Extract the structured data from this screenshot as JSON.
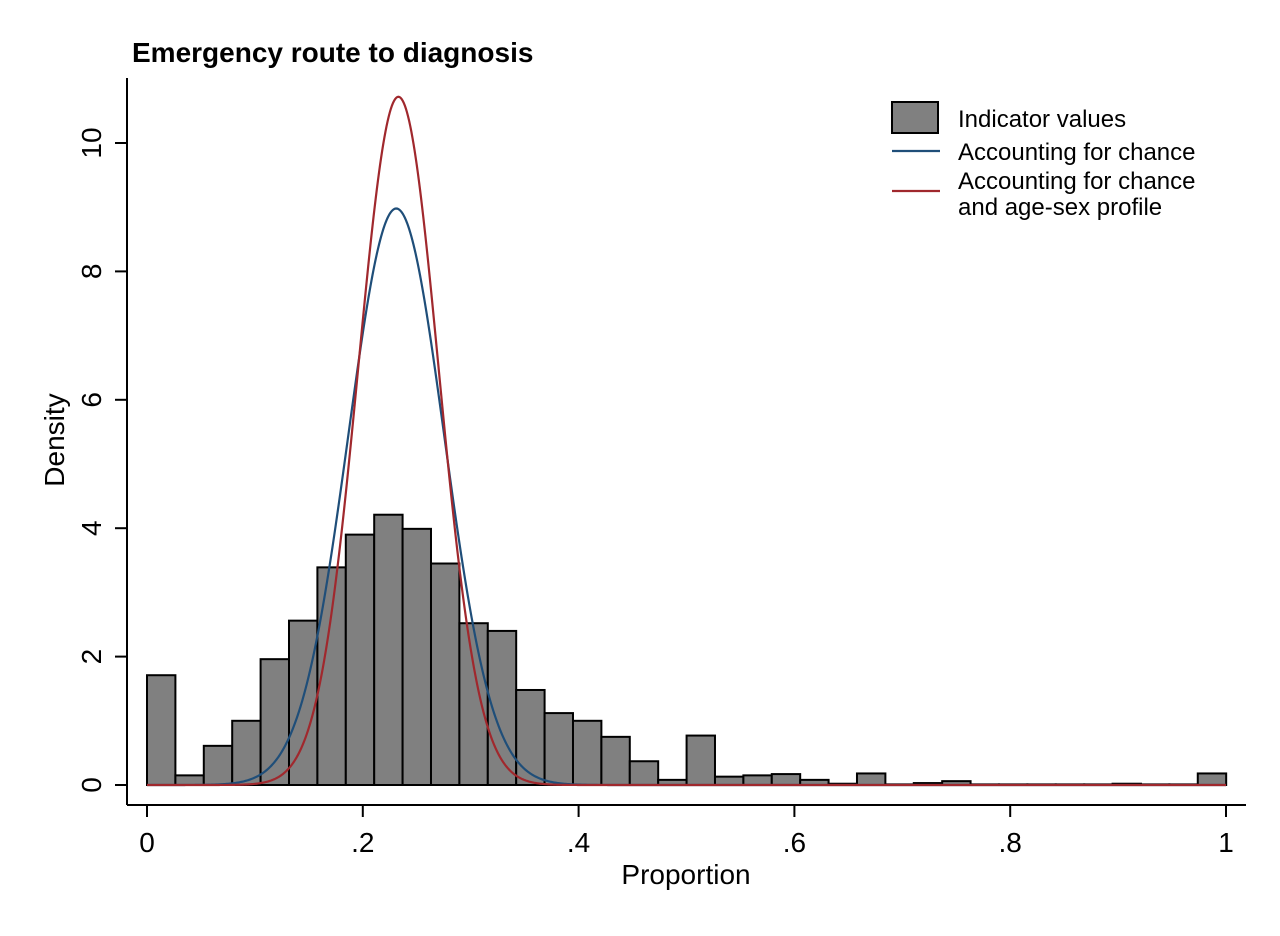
{
  "chart_data": {
    "type": "bar",
    "title": "Emergency route to diagnosis",
    "xlabel": "Proportion",
    "ylabel": "Density",
    "xlim": [
      0,
      1
    ],
    "ylim": [
      0,
      10.7
    ],
    "x_ticks": [
      0,
      0.2,
      0.4,
      0.6,
      0.8,
      1
    ],
    "x_tick_labels": [
      "0",
      ".2",
      ".4",
      ".6",
      ".8",
      "1"
    ],
    "y_ticks": [
      0,
      2,
      4,
      6,
      8,
      10
    ],
    "y_tick_labels": [
      "0",
      "2",
      "4",
      "6",
      "8",
      "10"
    ],
    "grid": false,
    "legend_position": "top-right",
    "legend": [
      {
        "label": "Indicator values",
        "kind": "bar",
        "color": "#808080"
      },
      {
        "label": "Accounting for chance",
        "kind": "line",
        "color": "#1f4e79"
      },
      {
        "label": "Accounting for chance",
        "label2": "and age-sex profile",
        "kind": "line",
        "color": "#a0282d"
      }
    ],
    "histogram": {
      "name": "Indicator values",
      "bin_width": 0.02632,
      "bin_start": 0,
      "values": [
        1.71,
        0.15,
        0.61,
        1.0,
        1.96,
        2.56,
        3.39,
        3.9,
        4.21,
        3.99,
        3.45,
        2.52,
        2.4,
        1.48,
        1.12,
        1.0,
        0.75,
        0.37,
        0.08,
        0.77,
        0.13,
        0.15,
        0.17,
        0.08,
        0.02,
        0.18,
        0.01,
        0.03,
        0.06,
        0.01,
        0.01,
        0.01,
        0.01,
        0.01,
        0.02,
        0.01,
        0.01,
        0.18
      ],
      "fill": "#808080",
      "stroke": "#000000"
    },
    "curves": [
      {
        "name": "Accounting for chance",
        "distribution": "normal",
        "mean": 0.231,
        "peak": 8.98,
        "color": "#1f4e79"
      },
      {
        "name": "Accounting for chance and age-sex profile",
        "distribution": "normal",
        "mean": 0.233,
        "peak": 10.72,
        "color": "#a0282d"
      }
    ]
  }
}
